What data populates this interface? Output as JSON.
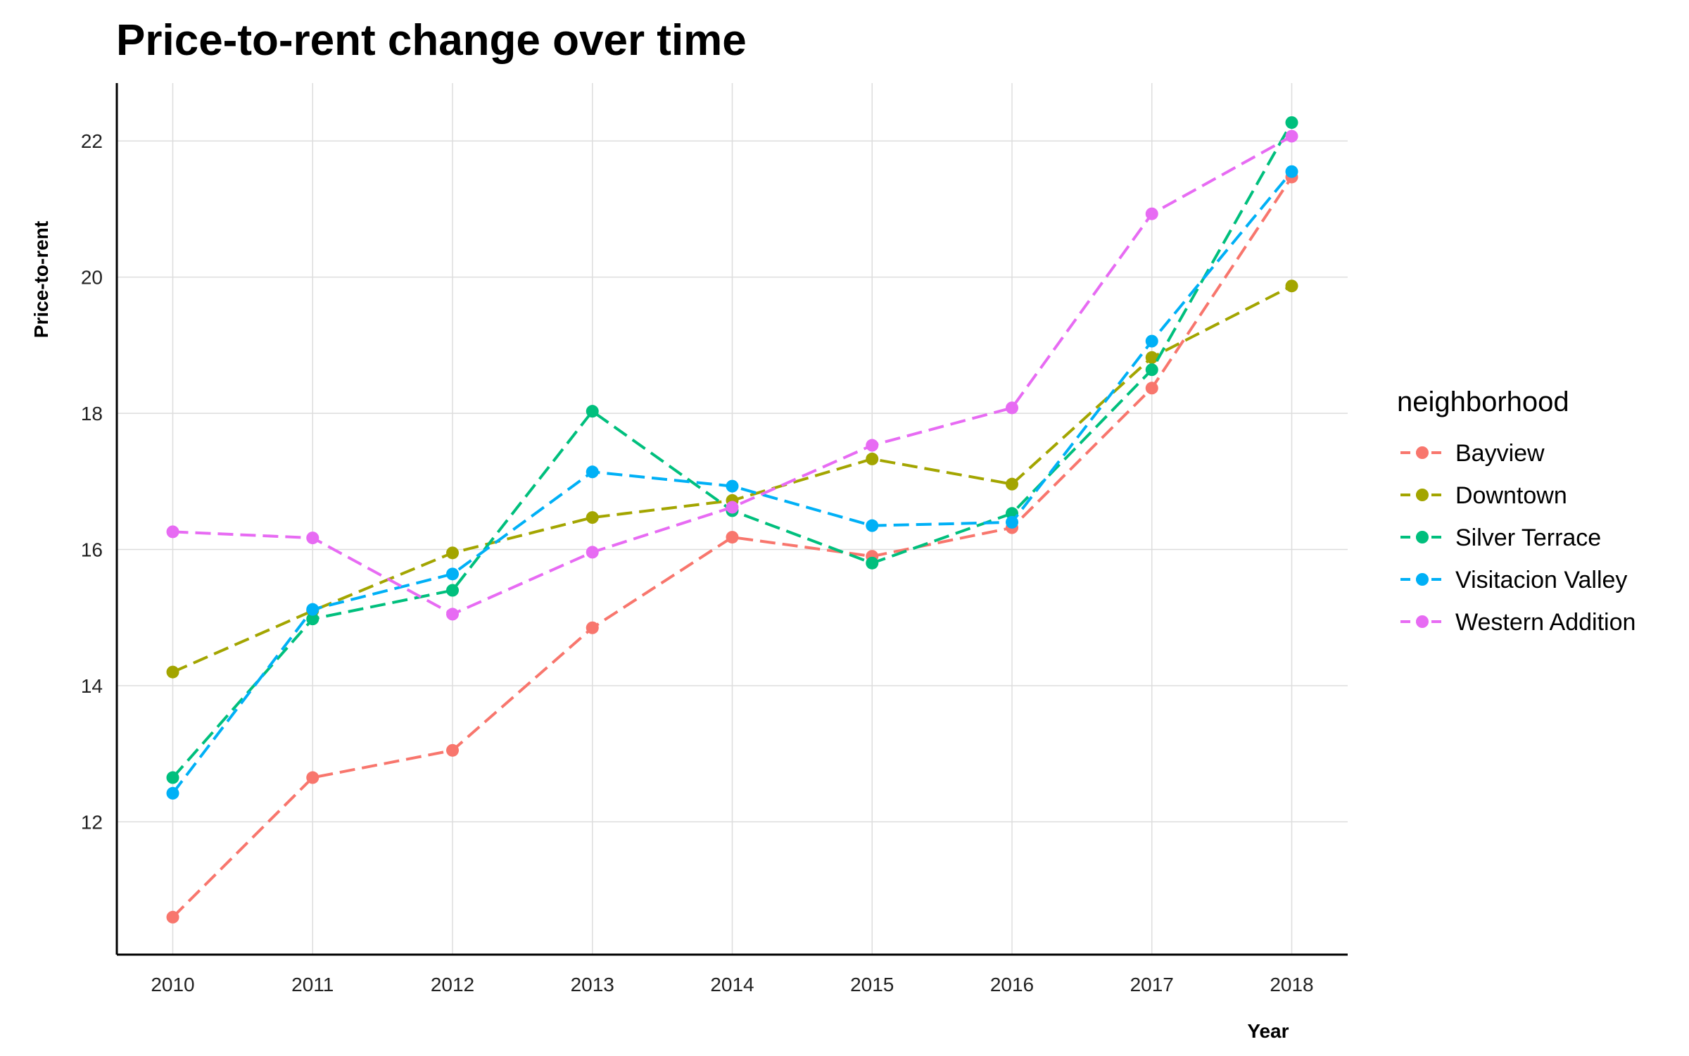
{
  "chart_data": {
    "type": "line",
    "title": "Price-to-rent change over time",
    "xlabel": "Year",
    "ylabel": "Price-to-rent",
    "x": [
      "2010",
      "2011",
      "2012",
      "2013",
      "2014",
      "2015",
      "2016",
      "2017",
      "2018"
    ],
    "xlim": [
      2009.6,
      2018.4
    ],
    "ylim": [
      10.05,
      22.85
    ],
    "yticks": [
      12,
      14,
      16,
      18,
      20,
      22
    ],
    "grid": true,
    "line_style": "dashed",
    "markers": true,
    "legend_title": "neighborhood",
    "legend_position": "right",
    "series": [
      {
        "name": "Bayview",
        "color": "#F8766D",
        "values": [
          10.6,
          12.65,
          13.05,
          14.85,
          16.18,
          15.9,
          16.32,
          18.37,
          21.47
        ]
      },
      {
        "name": "Downtown",
        "color": "#A3A500",
        "values": [
          14.2,
          15.1,
          15.95,
          16.47,
          16.72,
          17.33,
          16.96,
          18.82,
          19.87
        ]
      },
      {
        "name": "Silver Terrace",
        "color": "#00BF7D",
        "values": [
          12.65,
          14.98,
          15.4,
          18.03,
          16.57,
          15.8,
          16.53,
          18.64,
          22.27
        ]
      },
      {
        "name": "Visitacion Valley",
        "color": "#00B0F6",
        "values": [
          12.42,
          15.12,
          15.64,
          17.14,
          16.93,
          16.35,
          16.4,
          19.06,
          21.55
        ]
      },
      {
        "name": "Western Addition",
        "color": "#E76BF3",
        "values": [
          16.26,
          16.17,
          15.05,
          15.96,
          16.62,
          17.53,
          18.08,
          20.93,
          22.07
        ]
      }
    ]
  }
}
